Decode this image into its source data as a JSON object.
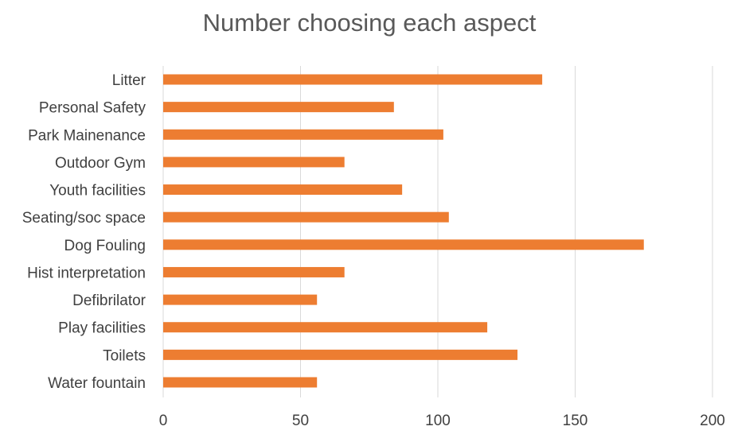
{
  "chart_data": {
    "type": "bar",
    "orientation": "horizontal",
    "title": "Number choosing each aspect",
    "xlabel": "",
    "ylabel": "",
    "categories": [
      "Litter",
      "Personal Safety",
      "Park Mainenance",
      "Outdoor Gym",
      "Youth facilities",
      "Seating/soc space",
      "Dog Fouling",
      "Hist interpretation",
      "Defibrilator",
      "Play facilities",
      "Toilets",
      "Water fountain"
    ],
    "values": [
      138,
      84,
      102,
      66,
      87,
      104,
      175,
      66,
      56,
      118,
      129,
      56
    ],
    "xlim": [
      0,
      200
    ],
    "xticks": [
      "0",
      "50",
      "100",
      "150",
      "200"
    ],
    "grid": "vertical",
    "legend": "none",
    "bar_color": "#ED7D31"
  }
}
